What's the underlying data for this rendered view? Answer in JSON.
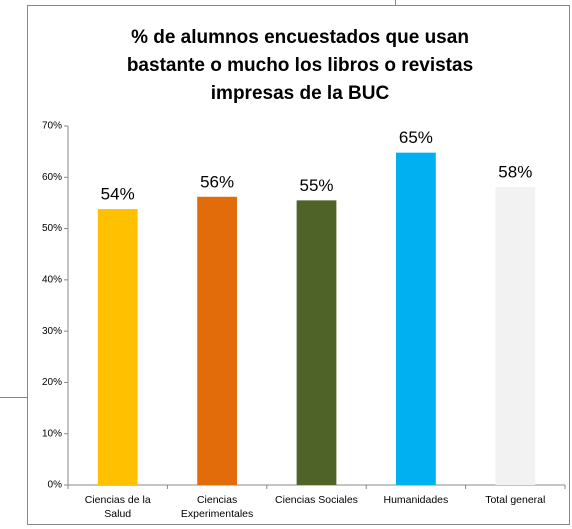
{
  "chart_data": {
    "type": "bar",
    "title": "% de alumnos encuestados que usan bastante o mucho los libros o revistas impresas de la BUC",
    "categories": [
      "Ciencias de la Salud",
      "Ciencias Experimentales",
      "Ciencias Sociales",
      "Humanidades",
      "Total general"
    ],
    "values": [
      53.8,
      56.2,
      55.5,
      64.8,
      58.1
    ],
    "value_labels": [
      "54%",
      "56%",
      "55%",
      "65%",
      "58%"
    ],
    "colors": [
      "#ffc000",
      "#e36c0a",
      "#4f6228",
      "#00b0f0",
      "#f2f2f2"
    ],
    "ylim": [
      0,
      70
    ],
    "yticks": [
      {
        "value": 0,
        "label": "0%"
      },
      {
        "value": 10,
        "label": "10%"
      },
      {
        "value": 20,
        "label": "20%"
      },
      {
        "value": 30,
        "label": "30%"
      },
      {
        "value": 40,
        "label": "40%"
      },
      {
        "value": 50,
        "label": "50%"
      },
      {
        "value": 60,
        "label": "60%"
      },
      {
        "value": 70,
        "label": "70%"
      }
    ],
    "grid": false
  }
}
